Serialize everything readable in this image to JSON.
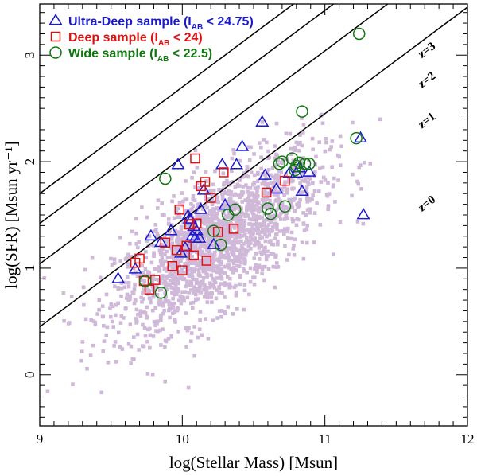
{
  "chart_data": {
    "type": "scatter",
    "xlabel": "log(Stellar Mass) [Msun]",
    "ylabel": "log(SFR) [Msun yr⁻¹]",
    "xlim": [
      9,
      12
    ],
    "ylim": [
      -0.48,
      3.48
    ],
    "x_ticks": [
      9,
      10,
      11,
      12
    ],
    "y_ticks": [
      0,
      1,
      2,
      3
    ],
    "x_tick_labels": [
      "9",
      "10",
      "11",
      "12"
    ],
    "y_tick_labels": [
      "0",
      "1",
      "2",
      "3"
    ],
    "legend_position": "top-left",
    "legend": [
      {
        "marker": "triangle",
        "color": "#1a1acc",
        "text": "Ultra-Deep sample (I",
        "sub": "AB",
        "suffix": " < 24.75)"
      },
      {
        "marker": "square",
        "color": "#dd1111",
        "text": "Deep sample (I",
        "sub": "AB",
        "suffix": " < 24)"
      },
      {
        "marker": "circle",
        "color": "#117711",
        "text": "Wide sample (I",
        "sub": "AB",
        "suffix": " < 22.5)"
      }
    ],
    "reference_lines": [
      {
        "label": "z=3",
        "slope": 1,
        "intercept": -7.3,
        "label_x": 11.73,
        "label_y": 3.02
      },
      {
        "label": "z=2",
        "slope": 1,
        "intercept": -7.58,
        "label_x": 11.73,
        "label_y": 2.74
      },
      {
        "label": "z=1",
        "slope": 1,
        "intercept": -7.96,
        "label_x": 11.73,
        "label_y": 2.36
      },
      {
        "label": "z=0",
        "slope": 1,
        "intercept": -8.55,
        "label_x": 11.73,
        "label_y": 1.58
      }
    ],
    "background_color": "#cfb8d8",
    "series": [
      {
        "name": "Ultra-Deep sample",
        "marker": "triangle",
        "color": "#1a1acc",
        "x": [
          9.55,
          9.67,
          9.78,
          9.85,
          9.92,
          9.97,
          9.99,
          10.02,
          10.04,
          10.05,
          10.06,
          10.07,
          10.08,
          10.09,
          10.1,
          10.12,
          10.13,
          10.15,
          10.22,
          10.28,
          10.3,
          10.38,
          10.42,
          10.56,
          10.58,
          10.66,
          10.75,
          10.8,
          10.82,
          10.84,
          10.89,
          11.25,
          11.27
        ],
        "y": [
          0.9,
          0.99,
          1.3,
          1.24,
          1.35,
          1.97,
          1.14,
          1.19,
          1.49,
          1.46,
          1.45,
          1.3,
          1.39,
          1.28,
          1.35,
          1.28,
          1.55,
          1.73,
          1.22,
          1.97,
          1.59,
          1.97,
          2.14,
          2.37,
          1.87,
          1.74,
          1.89,
          1.89,
          1.94,
          1.72,
          1.9,
          2.22,
          1.5
        ]
      },
      {
        "name": "Deep sample",
        "marker": "square",
        "color": "#dd1111",
        "x": [
          9.67,
          9.7,
          9.73,
          9.77,
          9.81,
          9.88,
          9.93,
          9.96,
          9.98,
          10.0,
          10.03,
          10.05,
          10.08,
          10.09,
          10.1,
          10.13,
          10.16,
          10.17,
          10.2,
          10.25,
          10.29,
          10.36,
          10.59,
          10.72
        ],
        "y": [
          1.05,
          1.09,
          0.88,
          0.8,
          0.89,
          1.24,
          1.02,
          1.17,
          1.55,
          0.98,
          1.21,
          1.41,
          1.12,
          2.03,
          1.42,
          1.77,
          1.81,
          1.07,
          1.66,
          1.34,
          1.9,
          1.37,
          1.71,
          1.82
        ]
      },
      {
        "name": "Wide sample",
        "marker": "circle",
        "color": "#117711",
        "x": [
          9.74,
          9.85,
          9.88,
          10.22,
          10.27,
          10.32,
          10.37,
          10.6,
          10.62,
          10.68,
          10.7,
          10.72,
          10.77,
          10.79,
          10.8,
          10.82,
          10.84,
          10.86,
          10.89,
          11.22,
          11.24
        ],
        "y": [
          0.88,
          0.77,
          1.84,
          1.35,
          1.22,
          1.5,
          1.55,
          1.56,
          1.51,
          1.98,
          2.0,
          1.58,
          2.03,
          1.92,
          1.96,
          1.99,
          2.47,
          1.98,
          1.98,
          2.22,
          3.2
        ]
      }
    ]
  }
}
